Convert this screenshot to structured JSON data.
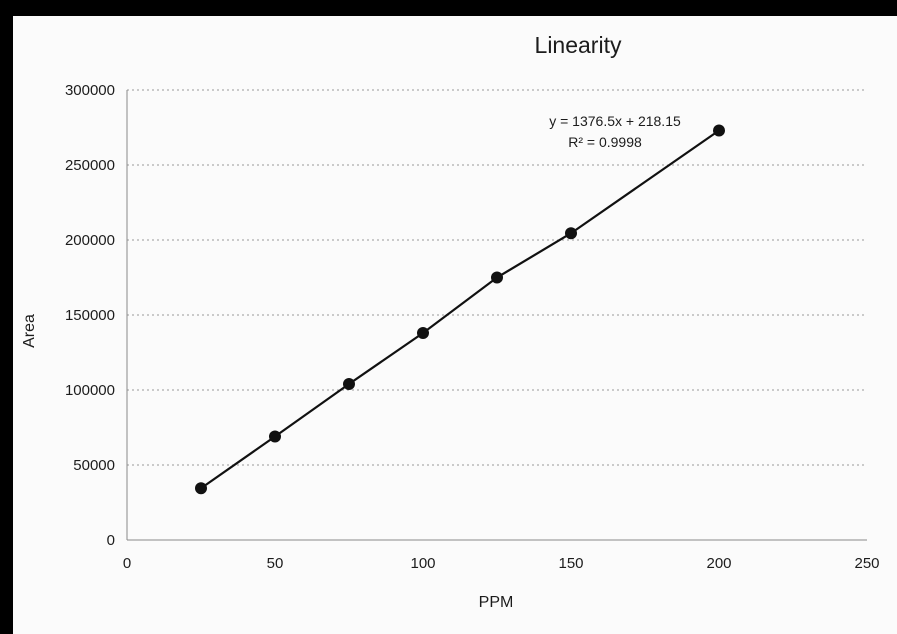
{
  "chart_data": {
    "type": "scatter",
    "title": "Linearity",
    "xlabel": "PPM",
    "ylabel": "Area",
    "xlim": [
      0,
      250
    ],
    "ylim": [
      0,
      300000
    ],
    "x_ticks": [
      "0",
      "50",
      "100",
      "150",
      "200",
      "250"
    ],
    "y_ticks": [
      "0",
      "50000",
      "100000",
      "150000",
      "200000",
      "250000",
      "300000"
    ],
    "grid": "horizontal",
    "legend": "none",
    "series": [
      {
        "x": [
          25,
          50,
          75,
          100,
          125,
          150,
          200
        ],
        "y": [
          34500,
          69000,
          104000,
          138000,
          175000,
          204500,
          273000
        ]
      }
    ],
    "trendline": {
      "type": "linear",
      "slope": 1376.5,
      "intercept": 218.15,
      "equation": "y = 1376.5x + 218.15",
      "r_squared": "R² = 0.9998"
    },
    "colors": {
      "marker": "#111111",
      "line": "#111111",
      "grid": "#9a9a9a",
      "frame": "#000000",
      "background": "#fbfbfb"
    }
  }
}
